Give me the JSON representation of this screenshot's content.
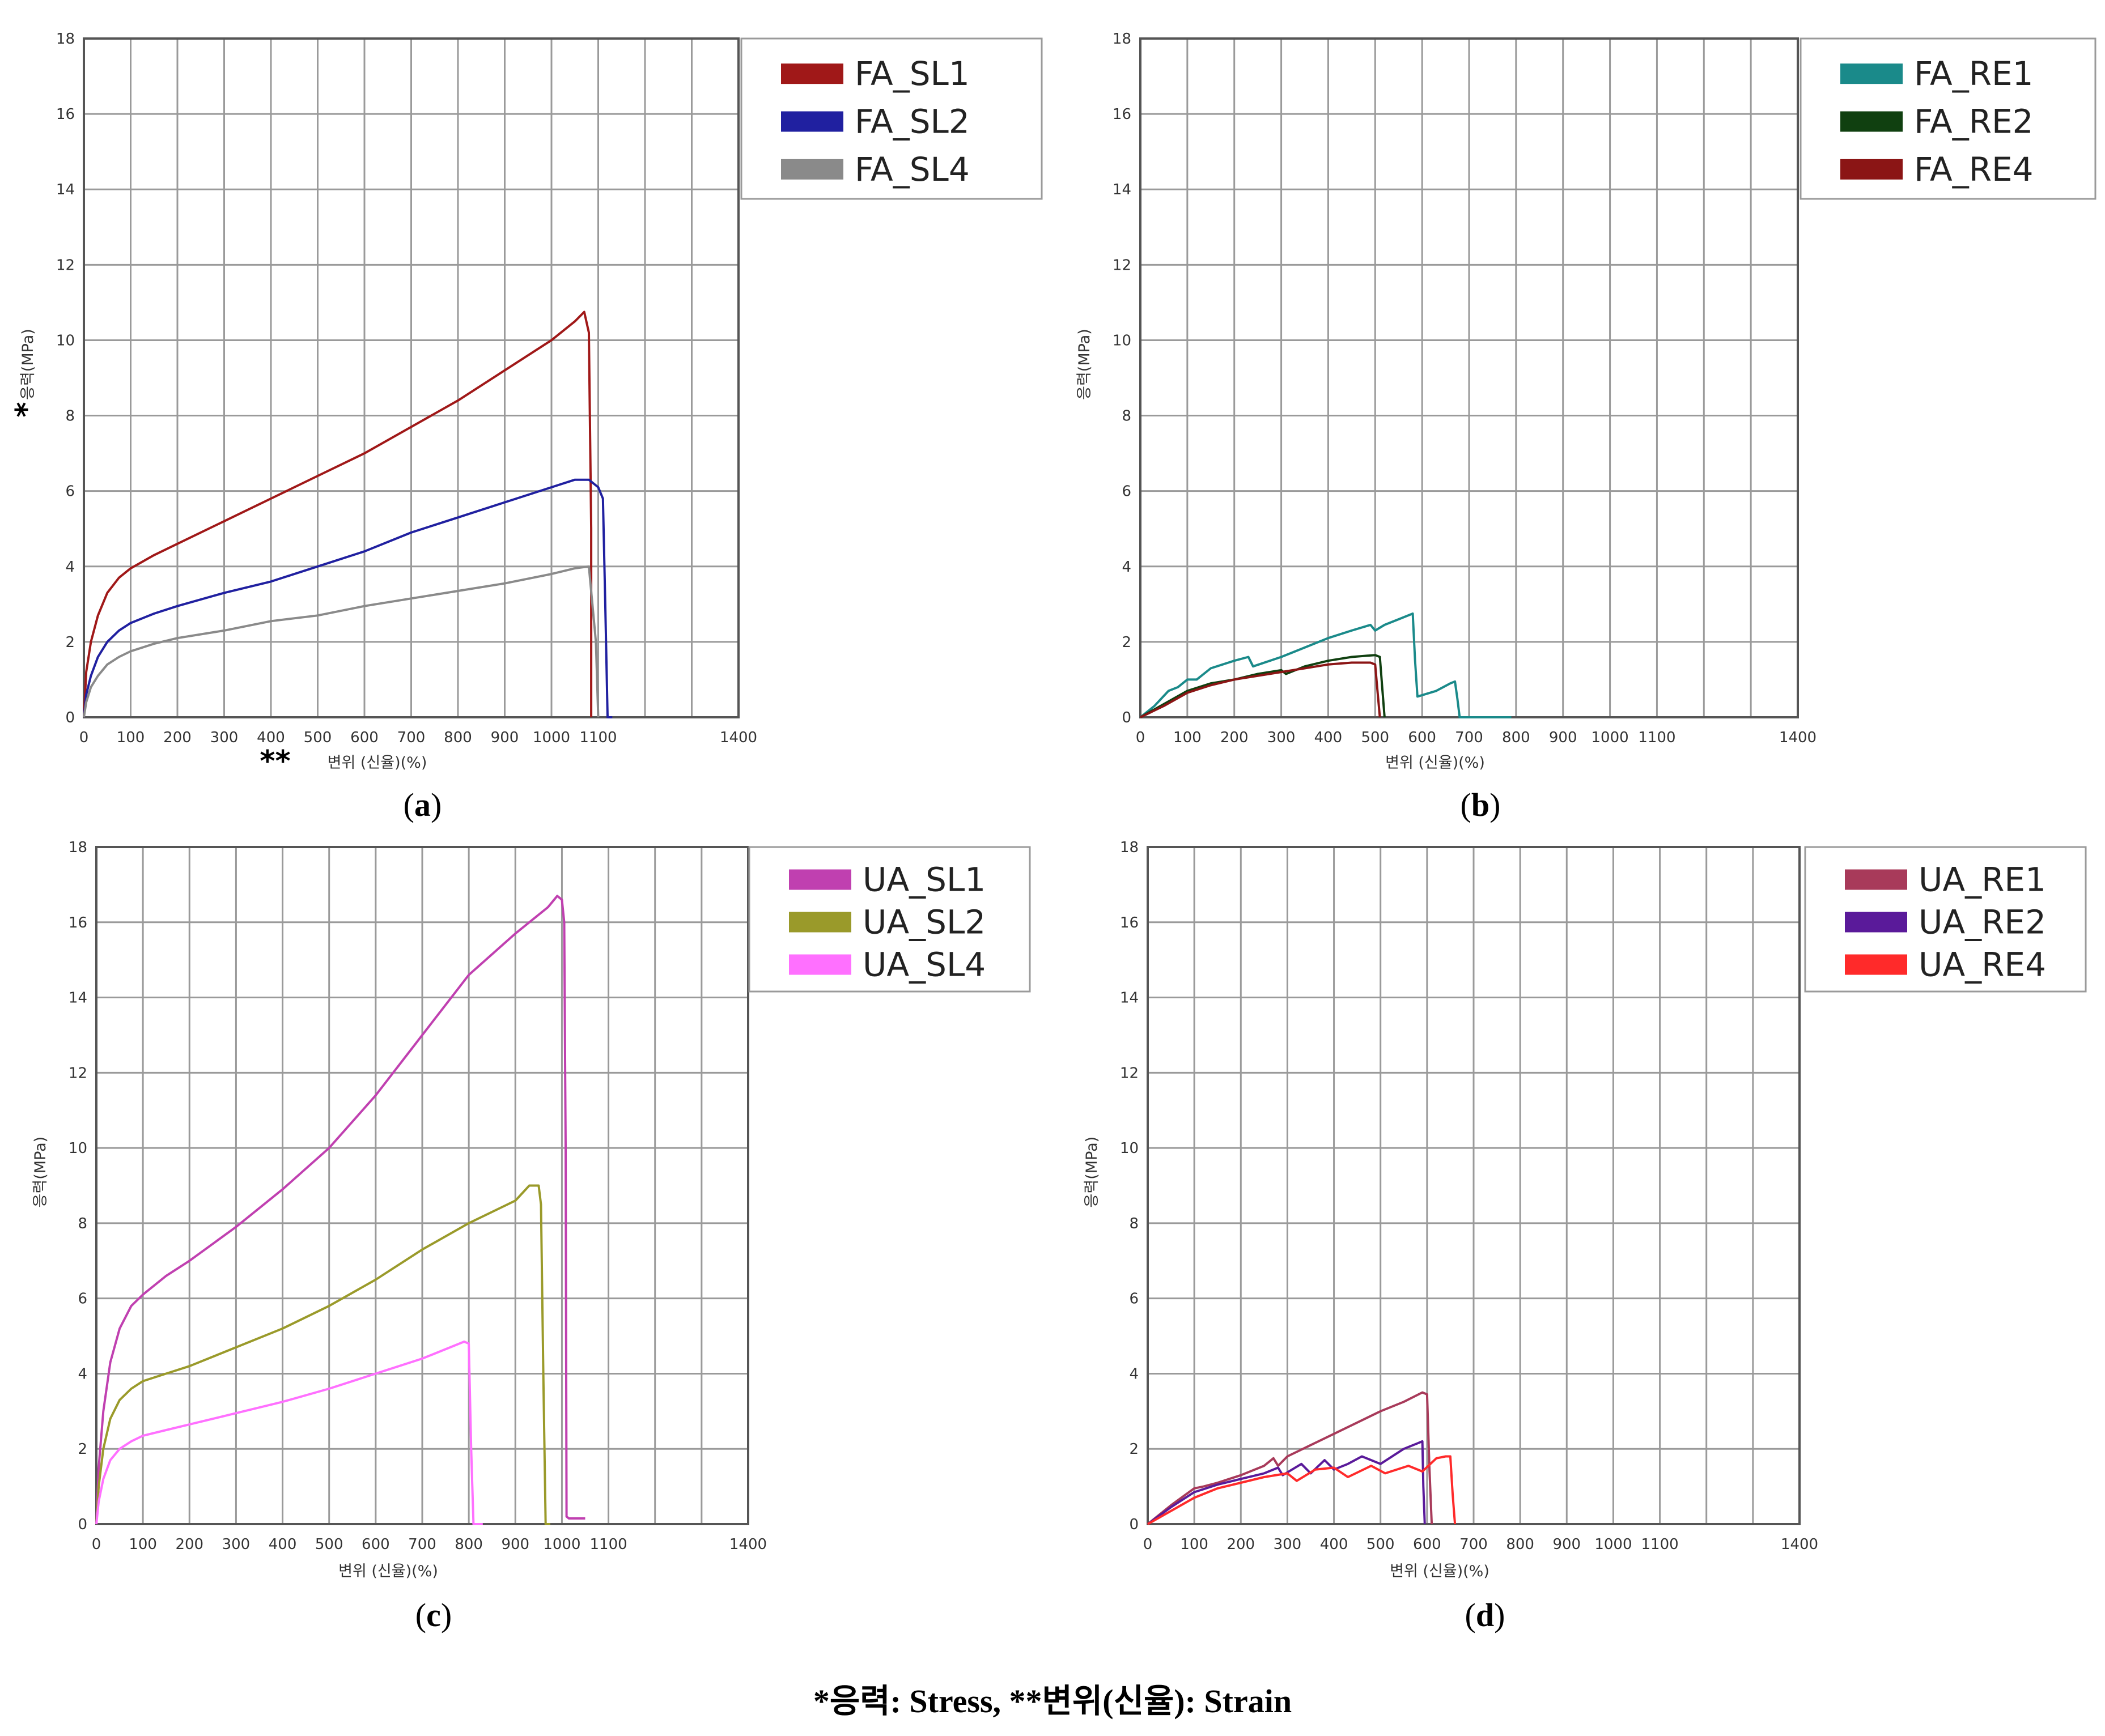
{
  "footnote": "*응력: Stress, **변위(신율): Strain",
  "chart_data": [
    {
      "panel": "a",
      "caption": "(a)",
      "type": "line",
      "xlabel": "변위 (신율)(%)",
      "xlabel_marker": "**",
      "ylabel": "응력(MPa)",
      "ylabel_marker": "*",
      "xlim": [
        0,
        1400
      ],
      "ylim": [
        0,
        18
      ],
      "xticks": [
        "0",
        "100",
        "200",
        "300",
        "400",
        "500",
        "600",
        "700",
        "800",
        "900",
        "1000",
        "1100",
        "1400"
      ],
      "yticks": [
        "0",
        "2",
        "4",
        "6",
        "8",
        "10",
        "12",
        "14",
        "16",
        "18"
      ],
      "legend_position": "top-right",
      "series": [
        {
          "name": "FA_SL1",
          "color": "#a01818",
          "x": [
            0,
            5,
            15,
            30,
            50,
            75,
            100,
            150,
            200,
            300,
            400,
            500,
            600,
            700,
            800,
            900,
            1000,
            1050,
            1070,
            1080,
            1085,
            1085
          ],
          "y": [
            0,
            1.2,
            2.0,
            2.7,
            3.3,
            3.7,
            3.95,
            4.3,
            4.6,
            5.2,
            5.8,
            6.4,
            7.0,
            7.7,
            8.4,
            9.2,
            10.0,
            10.5,
            10.75,
            10.2,
            5.0,
            0
          ]
        },
        {
          "name": "FA_SL2",
          "color": "#2020a0",
          "x": [
            0,
            5,
            15,
            30,
            50,
            75,
            100,
            150,
            200,
            300,
            400,
            500,
            600,
            700,
            800,
            900,
            1000,
            1050,
            1080,
            1100,
            1110,
            1115,
            1120,
            1130
          ],
          "y": [
            0,
            0.6,
            1.1,
            1.6,
            2.0,
            2.3,
            2.5,
            2.75,
            2.95,
            3.3,
            3.6,
            4.0,
            4.4,
            4.9,
            5.3,
            5.7,
            6.1,
            6.3,
            6.3,
            6.1,
            5.8,
            3.0,
            0,
            0
          ]
        },
        {
          "name": "FA_SL4",
          "color": "#8a8a8a",
          "x": [
            0,
            5,
            15,
            30,
            50,
            75,
            100,
            150,
            200,
            300,
            400,
            500,
            600,
            700,
            800,
            900,
            1000,
            1050,
            1080,
            1095,
            1100
          ],
          "y": [
            0,
            0.4,
            0.8,
            1.1,
            1.4,
            1.6,
            1.75,
            1.95,
            2.1,
            2.3,
            2.55,
            2.7,
            2.95,
            3.15,
            3.35,
            3.55,
            3.8,
            3.95,
            4.0,
            2.0,
            0
          ]
        }
      ]
    },
    {
      "panel": "b",
      "caption": "(b)",
      "type": "line",
      "xlabel": "변위 (신율)(%)",
      "ylabel": "응력(MPa)",
      "xlim": [
        0,
        1400
      ],
      "ylim": [
        0,
        18
      ],
      "xticks": [
        "0",
        "100",
        "200",
        "300",
        "400",
        "500",
        "600",
        "700",
        "800",
        "900",
        "1000",
        "1100",
        "1400"
      ],
      "yticks": [
        "0",
        "2",
        "4",
        "6",
        "8",
        "10",
        "12",
        "14",
        "16",
        "18"
      ],
      "legend_position": "top-right",
      "series": [
        {
          "name": "FA_RE1",
          "color": "#1a8a8a",
          "x": [
            0,
            30,
            60,
            80,
            100,
            120,
            150,
            200,
            230,
            240,
            300,
            350,
            400,
            450,
            490,
            500,
            520,
            550,
            580,
            585,
            590,
            630,
            660,
            670,
            675,
            680,
            720,
            790
          ],
          "y": [
            0,
            0.3,
            0.7,
            0.8,
            1.0,
            1.0,
            1.3,
            1.5,
            1.6,
            1.35,
            1.6,
            1.85,
            2.1,
            2.3,
            2.45,
            2.3,
            2.45,
            2.6,
            2.75,
            1.5,
            0.55,
            0.7,
            0.9,
            0.95,
            0.5,
            0,
            0,
            0
          ]
        },
        {
          "name": "FA_RE2",
          "color": "#104010",
          "x": [
            0,
            50,
            100,
            150,
            200,
            250,
            300,
            310,
            350,
            400,
            450,
            500,
            510,
            515,
            520
          ],
          "y": [
            0,
            0.35,
            0.7,
            0.9,
            1.0,
            1.15,
            1.25,
            1.15,
            1.35,
            1.5,
            1.6,
            1.65,
            1.6,
            0.8,
            0
          ]
        },
        {
          "name": "FA_RE4",
          "color": "#8b1515",
          "x": [
            0,
            50,
            100,
            150,
            200,
            250,
            300,
            350,
            400,
            450,
            490,
            500,
            505,
            510
          ],
          "y": [
            0,
            0.3,
            0.65,
            0.85,
            1.0,
            1.1,
            1.2,
            1.3,
            1.4,
            1.45,
            1.45,
            1.4,
            0.7,
            0
          ]
        }
      ]
    },
    {
      "panel": "c",
      "caption": "(c)",
      "type": "line",
      "xlabel": "변위 (신율)(%)",
      "ylabel": "응력(MPa)",
      "xlim": [
        0,
        1400
      ],
      "ylim": [
        0,
        18
      ],
      "xticks": [
        "0",
        "100",
        "200",
        "300",
        "400",
        "500",
        "600",
        "700",
        "800",
        "900",
        "1000",
        "1100",
        "1400"
      ],
      "yticks": [
        "0",
        "2",
        "4",
        "6",
        "8",
        "10",
        "12",
        "14",
        "16",
        "18"
      ],
      "legend_position": "top-right",
      "series": [
        {
          "name": "UA_SL1",
          "color": "#c040b0",
          "x": [
            0,
            5,
            15,
            30,
            50,
            75,
            100,
            150,
            200,
            300,
            400,
            500,
            600,
            700,
            800,
            900,
            970,
            990,
            1000,
            1005,
            1008,
            1010,
            1015,
            1050
          ],
          "y": [
            0,
            1.5,
            3.0,
            4.3,
            5.2,
            5.8,
            6.1,
            6.6,
            7.0,
            7.9,
            8.9,
            10.0,
            11.4,
            13.0,
            14.6,
            15.7,
            16.4,
            16.7,
            16.6,
            16.0,
            10.0,
            0.2,
            0.15,
            0.15
          ]
        },
        {
          "name": "UA_SL2",
          "color": "#9a9a2a",
          "x": [
            0,
            5,
            15,
            30,
            50,
            75,
            100,
            150,
            200,
            300,
            400,
            500,
            600,
            700,
            800,
            900,
            930,
            950,
            955,
            960,
            965,
            975
          ],
          "y": [
            0,
            1.0,
            2.0,
            2.8,
            3.3,
            3.6,
            3.8,
            4.0,
            4.2,
            4.7,
            5.2,
            5.8,
            6.5,
            7.3,
            8.0,
            8.6,
            9.0,
            9.0,
            8.5,
            4.0,
            0,
            0
          ]
        },
        {
          "name": "UA_SL4",
          "color": "#ff70ff",
          "x": [
            0,
            5,
            15,
            30,
            50,
            75,
            100,
            150,
            200,
            300,
            400,
            500,
            600,
            700,
            760,
            790,
            800,
            805,
            810,
            830
          ],
          "y": [
            0,
            0.6,
            1.2,
            1.7,
            2.0,
            2.2,
            2.35,
            2.5,
            2.65,
            2.95,
            3.25,
            3.6,
            4.0,
            4.4,
            4.7,
            4.85,
            4.8,
            2.0,
            0,
            0
          ]
        }
      ]
    },
    {
      "panel": "d",
      "caption": "(d)",
      "type": "line",
      "xlabel": "변위 (신율)(%)",
      "ylabel": "응력(MPa)",
      "xlim": [
        0,
        1400
      ],
      "ylim": [
        0,
        18
      ],
      "xticks": [
        "0",
        "100",
        "200",
        "300",
        "400",
        "500",
        "600",
        "700",
        "800",
        "900",
        "1000",
        "1100",
        "1400"
      ],
      "yticks": [
        "0",
        "2",
        "4",
        "6",
        "8",
        "10",
        "12",
        "14",
        "16",
        "18"
      ],
      "legend_position": "top-right",
      "series": [
        {
          "name": "UA_RE1",
          "color": "#a83a5a",
          "x": [
            0,
            50,
            100,
            120,
            150,
            200,
            250,
            270,
            280,
            300,
            350,
            400,
            450,
            500,
            550,
            590,
            600,
            605,
            610
          ],
          "y": [
            0,
            0.5,
            0.95,
            1.0,
            1.1,
            1.3,
            1.55,
            1.75,
            1.55,
            1.8,
            2.1,
            2.4,
            2.7,
            3.0,
            3.25,
            3.5,
            3.45,
            1.5,
            0
          ]
        },
        {
          "name": "UA_RE2",
          "color": "#5a1a9a",
          "x": [
            0,
            50,
            100,
            150,
            200,
            250,
            280,
            290,
            330,
            350,
            380,
            400,
            430,
            460,
            500,
            550,
            580,
            590,
            592,
            595
          ],
          "y": [
            0,
            0.45,
            0.85,
            1.05,
            1.2,
            1.35,
            1.5,
            1.3,
            1.6,
            1.35,
            1.7,
            1.45,
            1.6,
            1.8,
            1.6,
            2.0,
            2.15,
            2.2,
            1.0,
            0
          ]
        },
        {
          "name": "UA_RE4",
          "color": "#ff2a2a",
          "x": [
            0,
            50,
            100,
            150,
            200,
            250,
            300,
            320,
            360,
            400,
            430,
            480,
            510,
            560,
            590,
            620,
            640,
            650,
            655,
            660
          ],
          "y": [
            0,
            0.35,
            0.7,
            0.95,
            1.1,
            1.25,
            1.35,
            1.15,
            1.45,
            1.5,
            1.25,
            1.55,
            1.35,
            1.55,
            1.4,
            1.75,
            1.8,
            1.8,
            0.8,
            0
          ]
        }
      ]
    }
  ]
}
